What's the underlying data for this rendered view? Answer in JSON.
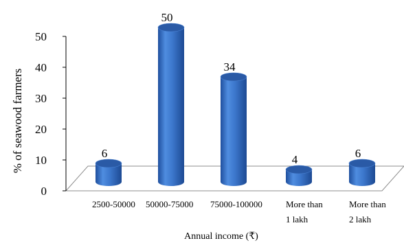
{
  "chart_data": {
    "type": "bar",
    "style": "3d-cylinder",
    "categories": [
      [
        "2500-50000"
      ],
      [
        "50000-75000"
      ],
      [
        "75000-100000"
      ],
      [
        "More than",
        "1 lakh"
      ],
      [
        "More than",
        "2 lakh"
      ]
    ],
    "values": [
      6,
      50,
      34,
      4,
      6
    ],
    "data_labels": [
      "6",
      "50",
      "34",
      "4",
      "6"
    ],
    "xlabel": "Annual income (₹)",
    "ylabel": "% of seawood farmers",
    "ylim": [
      0,
      50
    ],
    "yticks": [
      0,
      10,
      20,
      30,
      40,
      50
    ],
    "grid": false,
    "legend": "none",
    "colors": {
      "bar_body": "#3b74c9",
      "bar_top": "#2a5aa6",
      "floor_stroke": "#8c8c8c",
      "axis": "#000000"
    }
  }
}
